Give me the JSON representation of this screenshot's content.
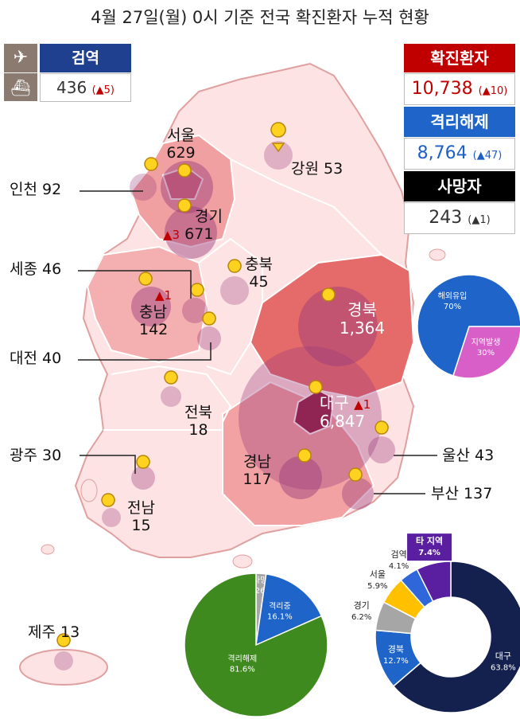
{
  "title": "4월 27일(월) 0시 기준 전국 확진환자 누적 현황",
  "quarantine": {
    "label": "검역",
    "value": "436",
    "delta": "(▲5)",
    "icons": [
      "airplane-icon",
      "ship-icon"
    ]
  },
  "totals": {
    "confirmed": {
      "label": "확진환자",
      "value": "10,738",
      "delta": "(▲10)",
      "color": "#c00000"
    },
    "released": {
      "label": "격리해제",
      "value": "8,764",
      "delta": "(▲47)",
      "color": "#1f64c8"
    },
    "deaths": {
      "label": "사망자",
      "value": "243",
      "delta": "(▲1)",
      "color": "#000000"
    }
  },
  "regions": {
    "seoul": {
      "name": "서울",
      "count": "629"
    },
    "incheon": {
      "name": "인천",
      "count": "92"
    },
    "gyeonggi": {
      "name": "경기",
      "count": "671",
      "delta": "▲3"
    },
    "gangwon": {
      "name": "강원",
      "count": "53"
    },
    "sejong": {
      "name": "세종",
      "count": "46"
    },
    "chungbuk": {
      "name": "충북",
      "count": "45"
    },
    "chungnam": {
      "name": "충남",
      "count": "142",
      "delta": "▲1"
    },
    "daejeon": {
      "name": "대전",
      "count": "40"
    },
    "gyeongbuk": {
      "name": "경북",
      "count": "1,364"
    },
    "daegu": {
      "name": "대구",
      "count": "6,847",
      "delta": "▲1"
    },
    "jeonbuk": {
      "name": "전북",
      "count": "18"
    },
    "ulsan": {
      "name": "울산",
      "count": "43"
    },
    "gwangju": {
      "name": "광주",
      "count": "30"
    },
    "gyeongnam": {
      "name": "경남",
      "count": "117"
    },
    "busan": {
      "name": "부산",
      "count": "137"
    },
    "jeonnam": {
      "name": "전남",
      "count": "15"
    },
    "jeju": {
      "name": "제주",
      "count": "13"
    }
  },
  "chart_data": [
    {
      "type": "pie",
      "categories": [
        "지역발생",
        "해외유입"
      ],
      "values": [
        3,
        7
      ],
      "labels": [
        "30%",
        "70%"
      ],
      "colors": [
        "#d95fc8",
        "#1f64c8"
      ]
    },
    {
      "type": "pie",
      "categories": [
        "사망",
        "격리중",
        "격리해제"
      ],
      "values": [
        2.26,
        16.1,
        81.6
      ],
      "labels": [
        "2.26%",
        "16.1%",
        "81.6%"
      ],
      "colors": [
        "#a6a6a6",
        "#1f64c8",
        "#3f8a1e"
      ]
    },
    {
      "type": "pie",
      "donut": true,
      "categories": [
        "대구",
        "경북",
        "경기",
        "서울",
        "검역",
        "타 지역"
      ],
      "values": [
        63.8,
        12.7,
        6.2,
        5.9,
        4.1,
        7.4
      ],
      "labels": [
        "63.8%",
        "12.7%",
        "6.2%",
        "5.9%",
        "4.1%",
        "7.4%"
      ],
      "colors": [
        "#14204e",
        "#1f64c8",
        "#a6a6a6",
        "#ffc000",
        "#2f66d9",
        "#5a1fa0"
      ]
    }
  ]
}
